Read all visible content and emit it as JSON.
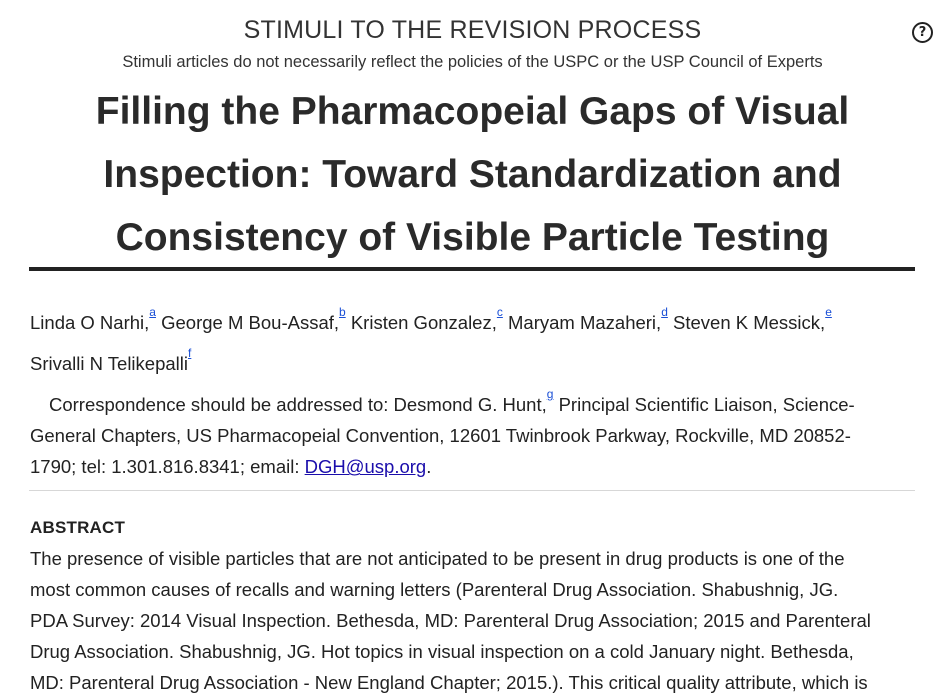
{
  "header": {
    "series_label": "STIMULI TO THE REVISION PROCESS",
    "disclaimer": "Stimuli articles do not necessarily reflect the policies of the USPC or the USP Council of Experts",
    "help_glyph": "?"
  },
  "article": {
    "title_lines": [
      "Filling the Pharmacopeial Gaps of Visual",
      "Inspection: Toward Standardization and",
      "Consistency of Visible Particle Testing"
    ],
    "authors": [
      {
        "name": "Linda O Narhi,",
        "mark": "a"
      },
      {
        "name": "George M Bou-Assaf,",
        "mark": "b"
      },
      {
        "name": "Kristen Gonzalez,",
        "mark": "c"
      },
      {
        "name": "Maryam Mazaheri,",
        "mark": "d"
      },
      {
        "name": "Steven K Messick,",
        "mark": "e"
      },
      {
        "name": "Srivalli N Telikepalli",
        "mark": "f"
      }
    ],
    "correspondence": {
      "prefix": "Correspondence should be addressed to: Desmond G. Hunt,",
      "mark": "g",
      "line1_rest": " Principal Scientific Liaison, Science-",
      "line2": "General Chapters, US Pharmacopeial Convention, 12601 Twinbrook Parkway, Rockville, MD 20852-",
      "line3_prefix": "1790; tel: 1.301.816.8341; email: ",
      "email": "DGH@usp.org",
      "line3_suffix": "."
    },
    "abstract": {
      "heading": "ABSTRACT",
      "lines": [
        "The presence of visible particles that are not anticipated to be present in drug products is one of the",
        "most common causes of recalls and warning letters (Parenteral Drug Association. Shabushnig, JG.",
        "PDA Survey: 2014 Visual Inspection. Bethesda, MD: Parenteral Drug Association; 2015 and Parenteral",
        "Drug Association. Shabushnig, JG. Hot topics in visual inspection on a cold January night. Bethesda,",
        "MD: Parenteral Drug Association - New England Chapter; 2015.). This critical quality attribute, which is"
      ]
    }
  }
}
